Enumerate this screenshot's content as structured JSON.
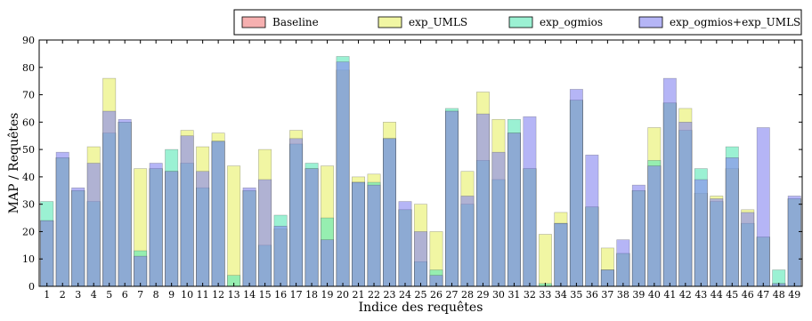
{
  "chart_data": {
    "type": "bar",
    "title": "",
    "xlabel": "Indice des requêtes",
    "ylabel": "MAP / Requêtes",
    "ylim": [
      0,
      90
    ],
    "yticks": [
      0,
      10,
      20,
      30,
      40,
      50,
      60,
      70,
      80,
      90
    ],
    "grid": false,
    "legend_position": "top-right",
    "overlay": true,
    "categories": [
      "1",
      "2",
      "3",
      "4",
      "5",
      "6",
      "7",
      "8",
      "9",
      "10",
      "11",
      "12",
      "13",
      "14",
      "15",
      "16",
      "17",
      "18",
      "19",
      "20",
      "21",
      "22",
      "23",
      "24",
      "25",
      "26",
      "27",
      "28",
      "29",
      "30",
      "31",
      "32",
      "33",
      "34",
      "35",
      "36",
      "37",
      "38",
      "39",
      "40",
      "41",
      "42",
      "43",
      "44",
      "45",
      "46",
      "47",
      "48",
      "49"
    ],
    "series": [
      {
        "name": "Baseline",
        "color": "#f08080",
        "values": [
          24,
          47,
          35,
          31,
          56,
          60,
          11,
          43,
          42,
          45,
          36,
          53,
          0,
          35,
          15,
          21,
          52,
          43,
          17,
          79,
          38,
          37,
          54,
          28,
          9,
          4,
          64,
          30,
          46,
          39,
          56,
          43,
          0,
          23,
          68,
          29,
          6,
          12,
          35,
          44,
          67,
          57,
          34,
          31,
          43,
          23,
          18,
          1,
          32
        ]
      },
      {
        "name": "exp_UMLS",
        "color": "#e8f06a",
        "values": [
          24,
          47,
          35,
          51,
          76,
          60,
          43,
          43,
          42,
          57,
          51,
          56,
          44,
          35,
          50,
          21,
          57,
          43,
          44,
          79,
          40,
          41,
          60,
          28,
          30,
          20,
          64,
          42,
          71,
          61,
          56,
          43,
          19,
          27,
          68,
          29,
          14,
          12,
          35,
          58,
          67,
          65,
          34,
          33,
          43,
          28,
          18,
          1,
          32
        ]
      },
      {
        "name": "exp_ogmios",
        "color": "#5ee8b8",
        "values": [
          31,
          47,
          35,
          31,
          56,
          60,
          13,
          43,
          50,
          45,
          36,
          53,
          4,
          35,
          15,
          26,
          52,
          45,
          25,
          84,
          38,
          38,
          54,
          28,
          9,
          6,
          65,
          30,
          46,
          39,
          61,
          43,
          1,
          23,
          68,
          29,
          6,
          12,
          35,
          46,
          67,
          57,
          43,
          31,
          51,
          23,
          18,
          6,
          32
        ]
      },
      {
        "name": "exp_ogmios+exp_UMLS",
        "color": "#8888f0",
        "values": [
          24,
          49,
          36,
          45,
          64,
          61,
          11,
          45,
          42,
          55,
          42,
          53,
          0,
          36,
          39,
          22,
          54,
          43,
          17,
          82,
          38,
          37,
          54,
          31,
          20,
          4,
          64,
          33,
          63,
          49,
          56,
          62,
          0,
          23,
          72,
          48,
          6,
          17,
          37,
          44,
          76,
          60,
          39,
          32,
          47,
          27,
          58,
          1,
          33
        ]
      }
    ]
  }
}
